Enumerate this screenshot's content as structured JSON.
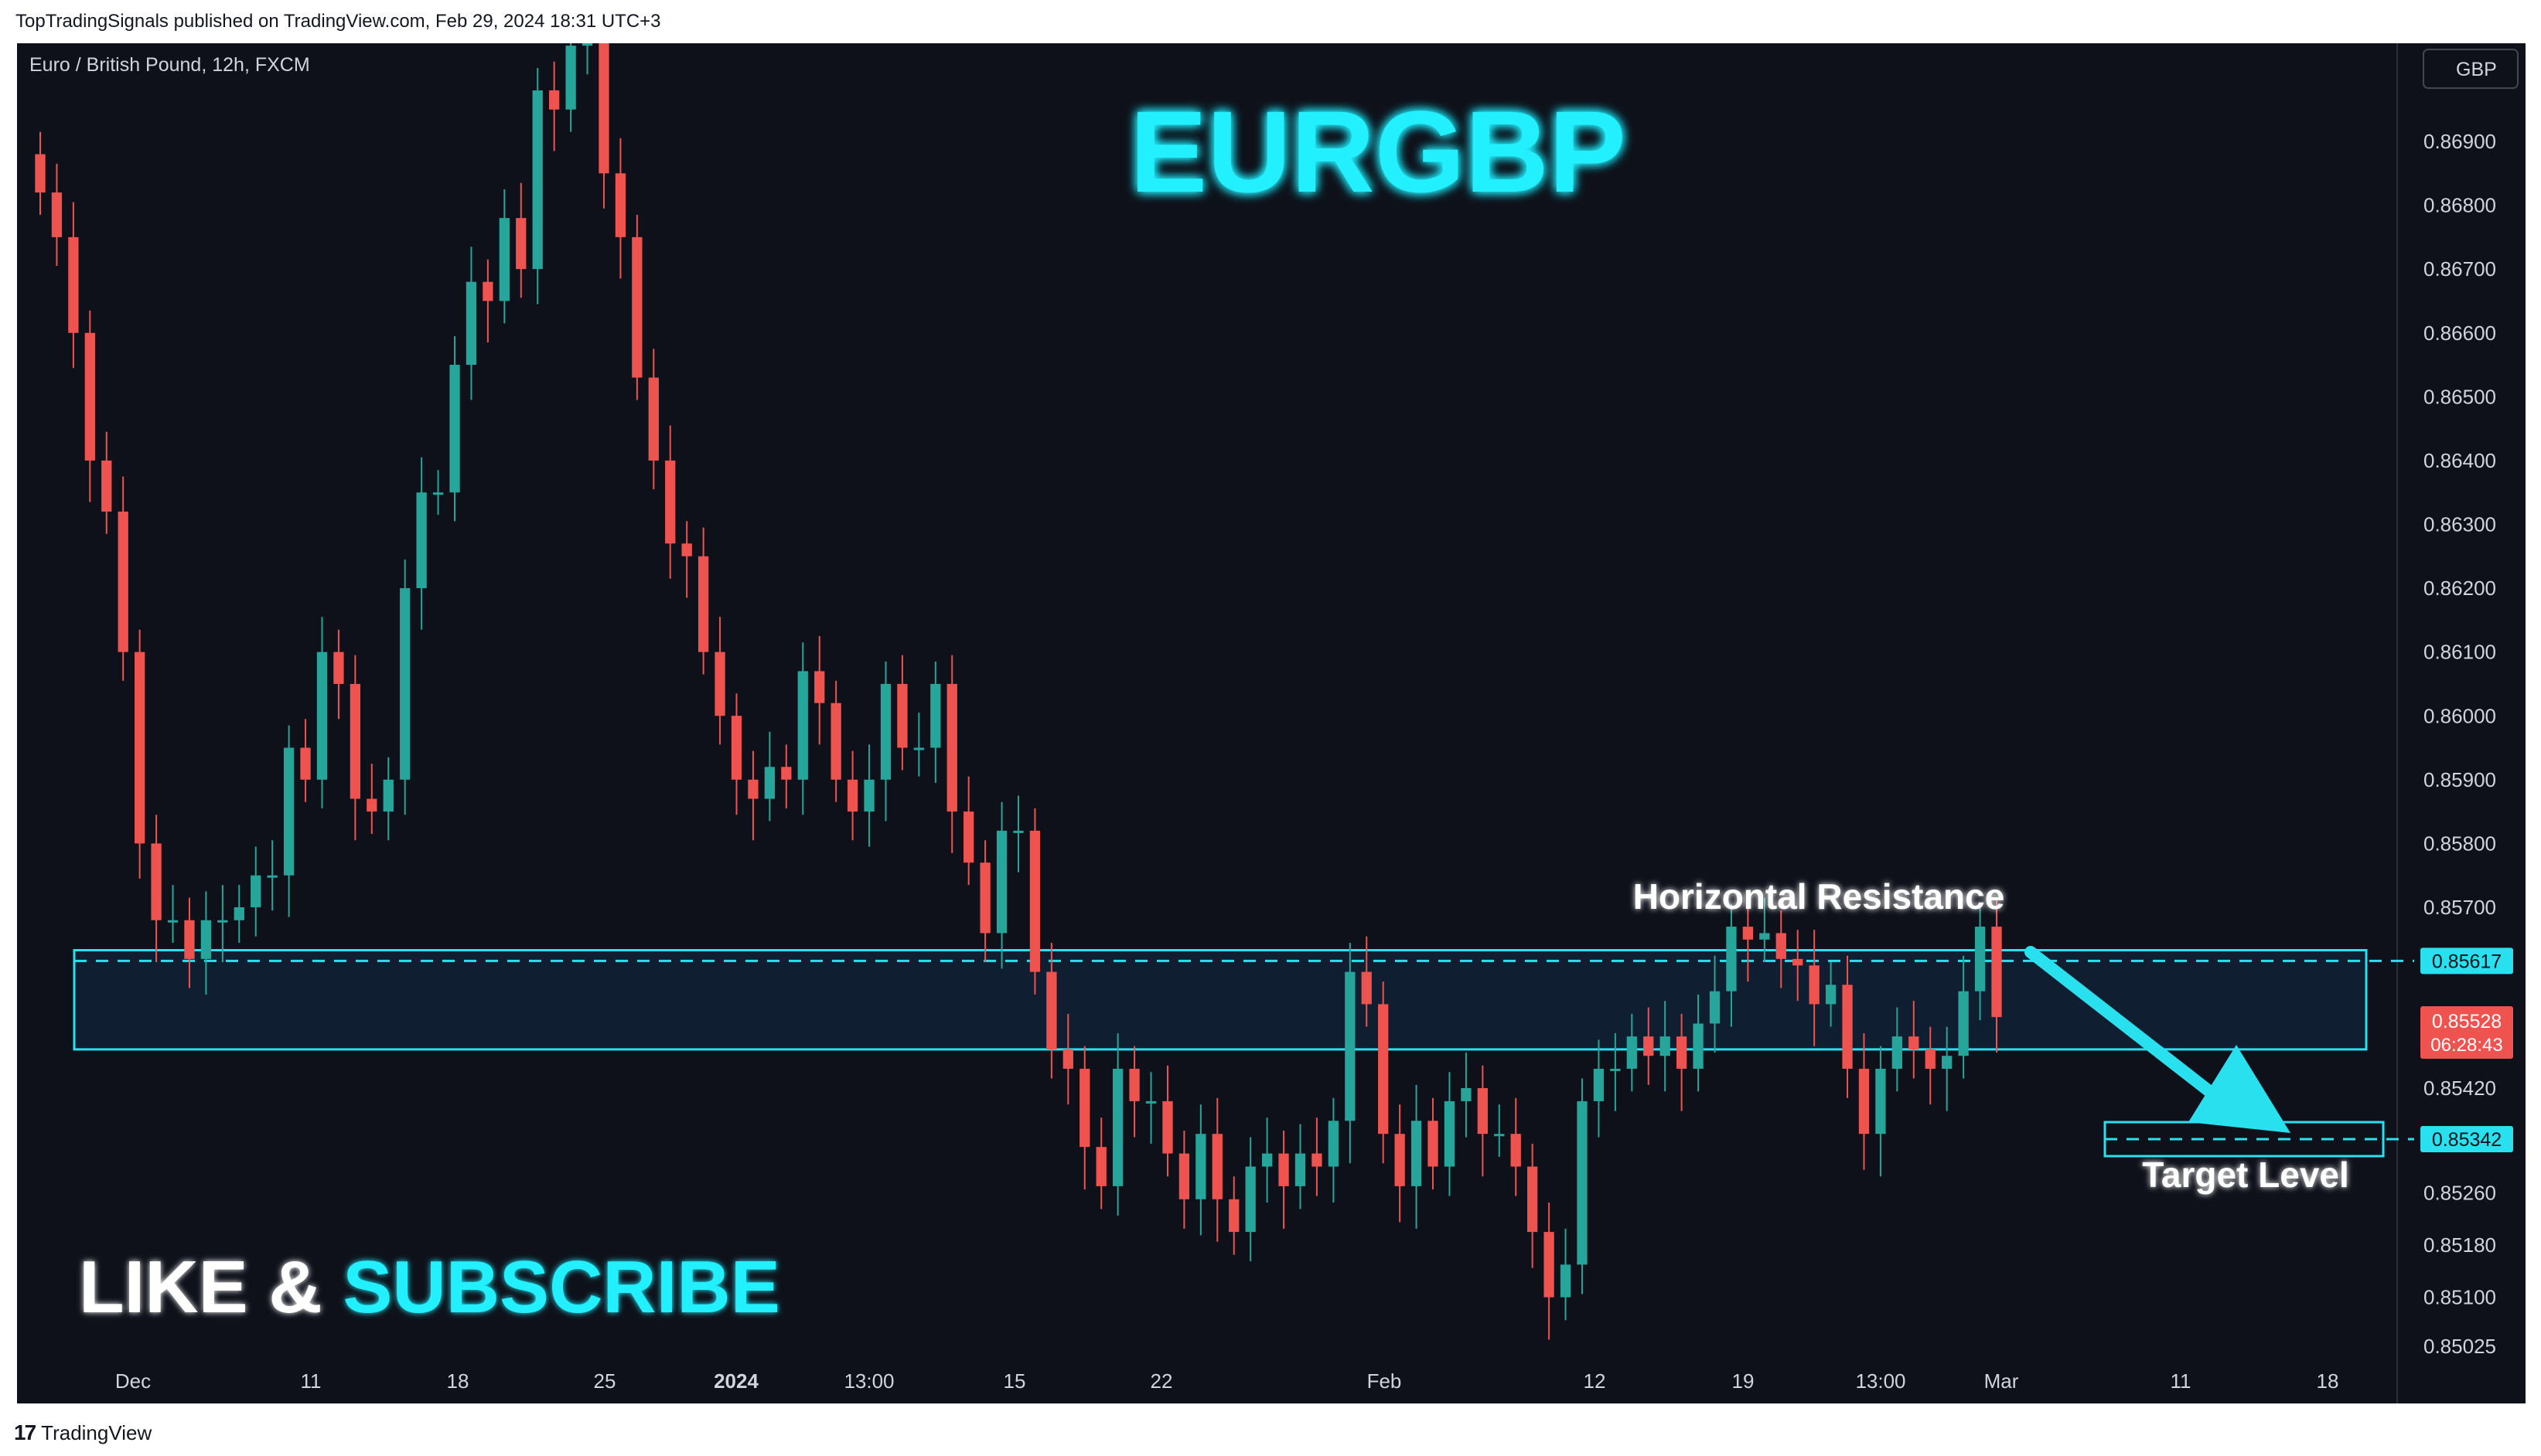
{
  "header": {
    "published": "TopTradingSignals published on TradingView.com, Feb 29, 2024 18:31 UTC+3"
  },
  "footer": {
    "brand": "TradingView",
    "logo_icon": "tradingview-logo-icon"
  },
  "symbol_info": "Euro / British Pound, 12h, FXCM",
  "currency_button": "GBP",
  "big_title": "EURGBP",
  "promo": {
    "part1": "LIKE & ",
    "part2": "SUBSCRIBE"
  },
  "annotations": {
    "resistance": "Horizontal Resistance",
    "target": "Target Level"
  },
  "labels": {
    "resistance_price": "0.85617",
    "current_price": "0.85528",
    "countdown": "06:28:43",
    "target_price": "0.85342"
  },
  "colors": {
    "up": "#26a69a",
    "down": "#ef5350",
    "accent": "#00e5ff",
    "bg": "#0e111a"
  },
  "chart_data": {
    "type": "candlestick",
    "symbol": "EURGBP",
    "timeframe": "12h",
    "y_ticks": [
      "0.86900",
      "0.86800",
      "0.86700",
      "0.86600",
      "0.86500",
      "0.86400",
      "0.86300",
      "0.86200",
      "0.86100",
      "0.86000",
      "0.85900",
      "0.85800",
      "0.85700",
      "0.85420",
      "0.85260",
      "0.85180",
      "0.85100",
      "0.85025"
    ],
    "x_ticks": [
      "Dec",
      "11",
      "18",
      "25",
      "2024",
      "13:00",
      "15",
      "22",
      "Feb",
      "12",
      "19",
      "13:00",
      "Mar",
      "11",
      "18"
    ],
    "resistance_zone": [
      0.8548,
      0.8563
    ],
    "resistance_line": 0.85617,
    "target_level": 0.85342,
    "current_price": 0.85528,
    "closes": [
      0.8682,
      0.8675,
      0.866,
      0.864,
      0.8632,
      0.861,
      0.858,
      0.8568,
      0.8568,
      0.8562,
      0.8568,
      0.8568,
      0.857,
      0.8575,
      0.8575,
      0.8595,
      0.859,
      0.861,
      0.8605,
      0.8587,
      0.8585,
      0.859,
      0.862,
      0.8635,
      0.8635,
      0.8655,
      0.8668,
      0.8665,
      0.8678,
      0.867,
      0.8698,
      0.8695,
      0.8705,
      0.8715,
      0.8685,
      0.8675,
      0.8653,
      0.864,
      0.8627,
      0.8625,
      0.861,
      0.86,
      0.859,
      0.8587,
      0.8592,
      0.859,
      0.8607,
      0.8602,
      0.859,
      0.8585,
      0.859,
      0.8605,
      0.8595,
      0.8595,
      0.8605,
      0.8585,
      0.8577,
      0.8566,
      0.8582,
      0.8582,
      0.856,
      0.8548,
      0.8545,
      0.8533,
      0.8527,
      0.8545,
      0.854,
      0.854,
      0.8532,
      0.8525,
      0.8535,
      0.8525,
      0.852,
      0.853,
      0.8532,
      0.8527,
      0.8532,
      0.853,
      0.8537,
      0.856,
      0.8555,
      0.8535,
      0.8527,
      0.8537,
      0.853,
      0.854,
      0.8542,
      0.8535,
      0.8535,
      0.853,
      0.852,
      0.851,
      0.8515,
      0.854,
      0.8545,
      0.8545,
      0.855,
      0.8547,
      0.855,
      0.8545,
      0.8552,
      0.8557,
      0.8567,
      0.8565,
      0.8566,
      0.8562,
      0.8561,
      0.8555,
      0.8558,
      0.8545,
      0.8535,
      0.8545,
      0.855,
      0.8548,
      0.8545,
      0.8547,
      0.8557,
      0.8567,
      0.8553
    ]
  }
}
